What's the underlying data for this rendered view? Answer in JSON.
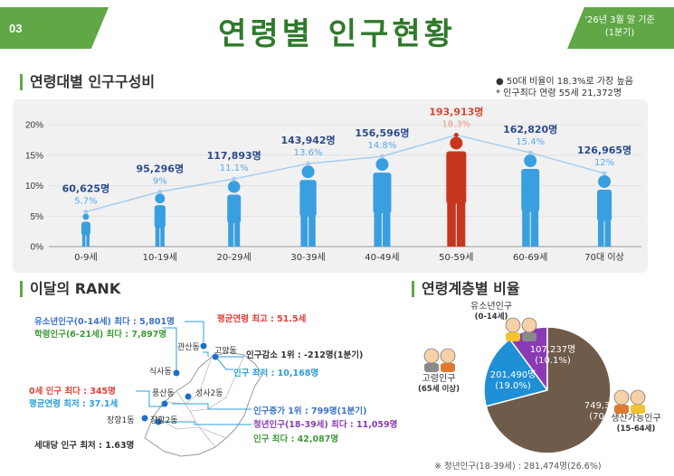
{
  "header": {
    "page_number": "03",
    "title": "연령별 인구현황",
    "date_line1": "'26년 3월 말 기준",
    "date_line2": "(1분기)",
    "accent_color": "#5fa845",
    "title_color": "#2f7a2a"
  },
  "section1": {
    "title": "연령대별 인구구성비",
    "note1": "● 50대 비율이 18.3%로 가장 높음",
    "note2": "* 인구최다 연령 55세 21,372명"
  },
  "chart_data": {
    "type": "line",
    "categories": [
      "0-9세",
      "10-19세",
      "20-29세",
      "30-39세",
      "40-49세",
      "50-59세",
      "60-69세",
      "70대 이상"
    ],
    "series": [
      {
        "values": [
          5.7,
          9,
          11.1,
          13.6,
          14.8,
          18.3,
          15.4,
          12
        ],
        "percent_labels": [
          "5.7%",
          "9%",
          "11.1%",
          "13.6%",
          "14.8%",
          "18.3%",
          "15.4%",
          "12%"
        ],
        "counts": [
          "60,625명",
          "95,296명",
          "117,893명",
          "143,942명",
          "156,596명",
          "193,913명",
          "162,820명",
          "126,965명"
        ]
      }
    ],
    "y_ticks": [
      "0%",
      "5%",
      "10%",
      "15%",
      "20%"
    ],
    "ylim": [
      0,
      20
    ],
    "highlight_index": 5,
    "colors": {
      "normal": "#3a9fdf",
      "highlight": "#c8361f",
      "line": "#a9cdee",
      "count_text": "#2b4a8c",
      "pct_text": "#5aa9e6",
      "highlight_text": "#d8462c"
    }
  },
  "rank": {
    "title": "이달의 RANK",
    "labels": [
      {
        "text": "유소년인구(0-14세) 최다 : 5,801명",
        "color": "blue"
      },
      {
        "text": "학령인구(6-21세) 최다 : 7,897명",
        "color": "green"
      },
      {
        "text": "평균연령 최고 : 51.5세",
        "color": "red"
      },
      {
        "text": "인구감소 1위 : -212명(1분기)",
        "color": "gray"
      },
      {
        "text": "인구 최저 : 10,168명",
        "color": "lightblue"
      },
      {
        "text": "0세 인구 최다 : 345명",
        "color": "red"
      },
      {
        "text": "평균연령 최저 : 37.1세",
        "color": "lightblue"
      },
      {
        "text": "인구증가 1위 : 799명(1분기)",
        "color": "blue"
      },
      {
        "text": "청년인구(18-39세) 최다 : 11,059명",
        "color": "purple"
      },
      {
        "text": "인구 최다 : 42,087명",
        "color": "green"
      },
      {
        "text": "세대당 인구 최저 : 1.63명",
        "color": "gray"
      }
    ],
    "districts": [
      "관산동",
      "고양동",
      "식사동",
      "풍산동",
      "성사2동",
      "장항1동",
      "장항2동"
    ]
  },
  "ratio": {
    "title": "연령계층별 비율",
    "groups": [
      {
        "name": "유소년인구",
        "sub": "(0-14세)",
        "count": "107,237명",
        "pct": "(10.1%)",
        "value": 10.1,
        "color": "#8a3bb3"
      },
      {
        "name": "고령인구",
        "sub": "(65세 이상)",
        "count": "201,490명",
        "pct": "(19.0%)",
        "value": 19.0,
        "color": "#1f8fd6"
      },
      {
        "name": "생산가능인구",
        "sub": "(15-64세)",
        "count": "749,323명",
        "pct": "(70.8%)",
        "value": 70.8,
        "color": "#6e5b4a"
      }
    ],
    "footnote": "※ 청년인구(18-39세) : 281,474명(26.6%)"
  }
}
